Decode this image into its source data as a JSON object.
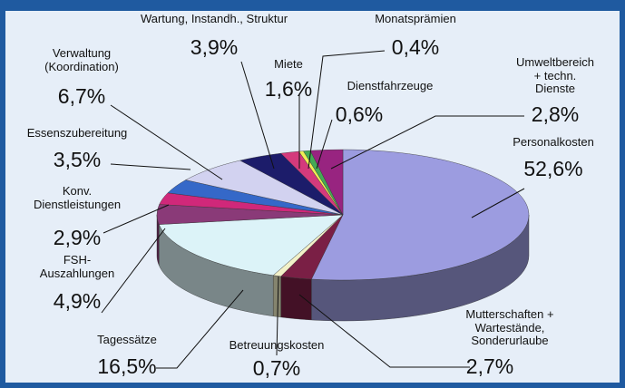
{
  "chart_data": {
    "type": "pie3d",
    "categories": [
      "Personalkosten",
      "Mutterschaften +\nWartestände, Sonderurlaube",
      "Betreuungskosten",
      "Tagessätze",
      "FSH-\nAuszahlungen",
      "Konv.\nDienstleistungen",
      "Essenszubereitung",
      "Verwaltung\n(Koordination)",
      "Wartung, Instandh., Struktur",
      "Miete",
      "Monatsprämien",
      "Dienstfahrzeuge",
      "Umweltbereich\n+ techn. Dienste"
    ],
    "values": [
      52.6,
      2.7,
      0.7,
      16.5,
      4.9,
      2.9,
      3.5,
      6.7,
      3.9,
      1.6,
      0.4,
      0.6,
      2.8
    ],
    "value_labels": [
      "52,6%",
      "2,7%",
      "0,7%",
      "16,5%",
      "4,9%",
      "2,9%",
      "3,5%",
      "6,7%",
      "3,9%",
      "1,6%",
      "0,4%",
      "0,6%",
      "2,8%"
    ],
    "colors": [
      "#9c9ce0",
      "#7a1f45",
      "#f2f0c8",
      "#dcf3f8",
      "#8a3a78",
      "#d0287a",
      "#3568c8",
      "#d2d2f0",
      "#1c1c6a",
      "#d43a7c",
      "#eeee55",
      "#44aa55",
      "#982480"
    ]
  }
}
